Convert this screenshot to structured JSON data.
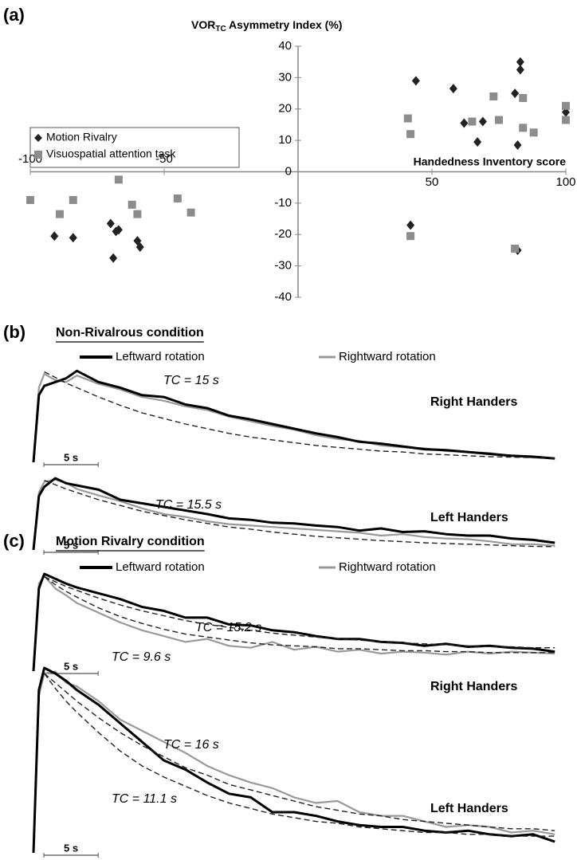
{
  "chart_data": [
    {
      "type": "scatter",
      "panel_label": "(a)",
      "y_label": {
        "text": "VOR",
        "subscript": "TC",
        "rest": " Asymmetry Index (%)"
      },
      "x_label": "Handedness Inventory score",
      "xlim": [
        -100,
        100
      ],
      "ylim": [
        -40,
        40
      ],
      "xticks": [
        -100,
        -50,
        50,
        100
      ],
      "yticks": [
        40,
        30,
        20,
        10,
        0,
        -10,
        -20,
        -30,
        -40
      ],
      "legend": "upper left",
      "series": [
        {
          "name": "Motion Rivalry",
          "color": "#222222",
          "marker": "diamond",
          "x": [
            44,
            58,
            62,
            67,
            69,
            81,
            83,
            83,
            82,
            100,
            42,
            82,
            -91,
            -84,
            -70,
            -68,
            -67,
            -69,
            -60,
            -59
          ],
          "values": [
            29,
            26.5,
            15.5,
            9.5,
            16,
            25,
            35,
            32.5,
            8.5,
            19,
            -17,
            -25,
            -20.5,
            -21,
            -16.5,
            -19,
            -18.5,
            -27.5,
            -22,
            -24
          ]
        },
        {
          "name": "Visuospatial attention task",
          "color": "#8c8c8c",
          "marker": "square",
          "x": [
            41,
            42,
            65,
            73,
            75,
            84,
            84,
            88,
            100,
            100,
            42,
            81,
            -100,
            -89,
            -84,
            -67,
            -62,
            -60,
            -45,
            -40
          ],
          "values": [
            17,
            12,
            16,
            24,
            16.5,
            23.5,
            14,
            12.5,
            21,
            16.5,
            -20.5,
            -24.5,
            -9,
            -13.5,
            -9,
            -2.5,
            -10.5,
            -13.5,
            -8.5,
            -13
          ]
        }
      ]
    },
    {
      "type": "line",
      "panel_label": "(b)",
      "title": "Non-Rivalrous condition",
      "x": [
        0,
        0.5,
        1,
        2,
        3,
        4,
        6,
        8,
        10,
        12,
        14,
        16,
        18,
        20,
        22,
        24,
        26,
        28,
        30,
        32,
        34,
        36,
        38,
        40,
        42,
        44,
        46,
        48
      ],
      "xlim": [
        0,
        48.5
      ],
      "ylim": [
        0,
        1
      ],
      "scale_bar": {
        "value": 5,
        "label": "5 s"
      },
      "series": [
        {
          "name": "Leftward rotation",
          "color": "#000000"
        },
        {
          "name": "Rightward rotation",
          "color": "#999999"
        }
      ],
      "subplots": [
        {
          "title": "Right Handers",
          "traces": [
            [
              0,
              0.72,
              0.82,
              0.86,
              0.9,
              0.98,
              0.86,
              0.8,
              0.72,
              0.7,
              0.62,
              0.58,
              0.5,
              0.46,
              0.41,
              0.36,
              0.31,
              0.27,
              0.22,
              0.2,
              0.17,
              0.14,
              0.13,
              0.11,
              0.09,
              0.07,
              0.06,
              0.04
            ],
            [
              0,
              0.8,
              0.95,
              0.88,
              0.86,
              0.93,
              0.84,
              0.78,
              0.7,
              0.66,
              0.6,
              0.56,
              0.49,
              0.44,
              0.39,
              0.35,
              0.29,
              0.25,
              0.23,
              0.18,
              0.16,
              0.15,
              0.12,
              0.11,
              0.1,
              0.07,
              0.05,
              0.04
            ]
          ],
          "fits": [
            {
              "label": "TC = 15 s",
              "values": [
                null,
                null,
                0.97,
                0.91,
                0.85,
                0.8,
                0.7,
                0.61,
                0.53,
                0.47,
                0.41,
                0.36,
                0.31,
                0.27,
                0.24,
                0.21,
                0.18,
                0.16,
                0.14,
                0.12,
                0.11,
                0.09,
                0.08,
                0.07,
                0.06,
                0.055,
                0.05,
                0.04
              ]
            }
          ]
        },
        {
          "title": "Left Handers",
          "traces": [
            [
              0,
              0.75,
              0.88,
              1.0,
              0.93,
              0.9,
              0.84,
              0.7,
              0.65,
              0.6,
              0.55,
              0.5,
              0.44,
              0.42,
              0.38,
              0.37,
              0.34,
              0.32,
              0.27,
              0.3,
              0.25,
              0.26,
              0.22,
              0.2,
              0.2,
              0.16,
              0.14,
              0.1
            ],
            [
              0,
              0.8,
              0.95,
              0.98,
              0.94,
              0.85,
              0.76,
              0.68,
              0.58,
              0.5,
              0.46,
              0.4,
              0.36,
              0.34,
              0.32,
              0.3,
              0.28,
              0.26,
              0.24,
              0.2,
              0.22,
              0.18,
              0.16,
              0.15,
              0.12,
              0.08,
              0.08,
              0.06
            ]
          ],
          "fits": [
            {
              "label": "TC = 15.5 s",
              "values": [
                null,
                null,
                0.97,
                0.91,
                0.85,
                0.8,
                0.7,
                0.62,
                0.54,
                0.48,
                0.42,
                0.37,
                0.32,
                0.29,
                0.25,
                0.22,
                0.19,
                0.17,
                0.15,
                0.13,
                0.115,
                0.1,
                0.09,
                0.08,
                0.07,
                0.06,
                0.05,
                0.047
              ]
            }
          ]
        }
      ]
    },
    {
      "type": "line",
      "panel_label": "(c)",
      "title": "Motion Rivalry condition",
      "x": [
        0,
        0.5,
        1,
        2,
        3,
        4,
        6,
        8,
        10,
        12,
        14,
        16,
        18,
        20,
        22,
        24,
        26,
        28,
        30,
        32,
        34,
        36,
        38,
        40,
        42,
        44,
        46,
        48
      ],
      "xlim": [
        0,
        48.5
      ],
      "ylim": [
        0,
        1
      ],
      "scale_bar": {
        "value": 5,
        "label": "5 s"
      },
      "series": [
        {
          "name": "Leftward rotation",
          "color": "#000000"
        },
        {
          "name": "Rightward rotation",
          "color": "#999999"
        }
      ],
      "subplots": [
        {
          "title": "Right Handers",
          "traces": [
            [
              0,
              0.85,
              1.0,
              0.95,
              0.9,
              0.86,
              0.8,
              0.74,
              0.66,
              0.62,
              0.55,
              0.55,
              0.48,
              0.47,
              0.42,
              0.4,
              0.36,
              0.33,
              0.33,
              0.3,
              0.29,
              0.26,
              0.28,
              0.25,
              0.26,
              0.24,
              0.23,
              0.2
            ],
            [
              0,
              0.9,
              0.98,
              0.85,
              0.78,
              0.7,
              0.6,
              0.5,
              0.42,
              0.36,
              0.3,
              0.33,
              0.26,
              0.24,
              0.3,
              0.22,
              0.25,
              0.2,
              0.22,
              0.18,
              0.2,
              0.19,
              0.17,
              0.2,
              0.18,
              0.2,
              0.19,
              0.18
            ]
          ],
          "fits": [
            {
              "label": "TC = 15.2 s",
              "values": [
                null,
                null,
                0.97,
                0.92,
                0.87,
                0.83,
                0.75,
                0.68,
                0.62,
                0.57,
                0.52,
                0.48,
                0.45,
                0.42,
                0.39,
                0.37,
                0.35,
                0.33,
                0.32,
                0.3,
                0.29,
                0.28,
                0.27,
                0.26,
                0.25,
                0.25,
                0.24,
                0.24
              ]
            },
            {
              "label": "TC = 9.6 s",
              "values": [
                null,
                null,
                0.97,
                0.89,
                0.82,
                0.76,
                0.65,
                0.56,
                0.49,
                0.43,
                0.38,
                0.35,
                0.32,
                0.29,
                0.27,
                0.26,
                0.25,
                0.23,
                0.23,
                0.22,
                0.21,
                0.21,
                0.2,
                0.2,
                0.19,
                0.19,
                0.19,
                0.19
              ]
            }
          ]
        },
        {
          "title": "Left Handers",
          "traces": [
            [
              0,
              0.88,
              1.0,
              0.97,
              0.93,
              0.88,
              0.8,
              0.7,
              0.6,
              0.5,
              0.45,
              0.38,
              0.32,
              0.3,
              0.22,
              0.22,
              0.2,
              0.17,
              0.15,
              0.14,
              0.14,
              0.12,
              0.11,
              0.12,
              0.1,
              0.09,
              0.1,
              0.06
            ],
            [
              0,
              0.85,
              0.97,
              0.98,
              0.92,
              0.9,
              0.82,
              0.72,
              0.66,
              0.6,
              0.54,
              0.47,
              0.42,
              0.38,
              0.35,
              0.3,
              0.27,
              0.28,
              0.22,
              0.2,
              0.2,
              0.17,
              0.14,
              0.15,
              0.14,
              0.11,
              0.12,
              0.1
            ]
          ],
          "fits": [
            {
              "label": "TC = 16 s",
              "values": [
                null,
                null,
                0.97,
                0.92,
                0.87,
                0.82,
                0.73,
                0.65,
                0.58,
                0.52,
                0.46,
                0.42,
                0.37,
                0.34,
                0.31,
                0.28,
                0.25,
                0.23,
                0.21,
                0.2,
                0.18,
                0.17,
                0.16,
                0.15,
                0.14,
                0.13,
                0.13,
                0.12
              ]
            },
            {
              "label": "TC = 11.1 s",
              "values": [
                null,
                null,
                0.97,
                0.89,
                0.82,
                0.76,
                0.65,
                0.55,
                0.47,
                0.41,
                0.36,
                0.31,
                0.27,
                0.24,
                0.21,
                0.19,
                0.17,
                0.16,
                0.14,
                0.13,
                0.12,
                0.11,
                0.11,
                0.1,
                0.1,
                0.09,
                0.09,
                0.09
              ]
            }
          ]
        }
      ]
    }
  ]
}
